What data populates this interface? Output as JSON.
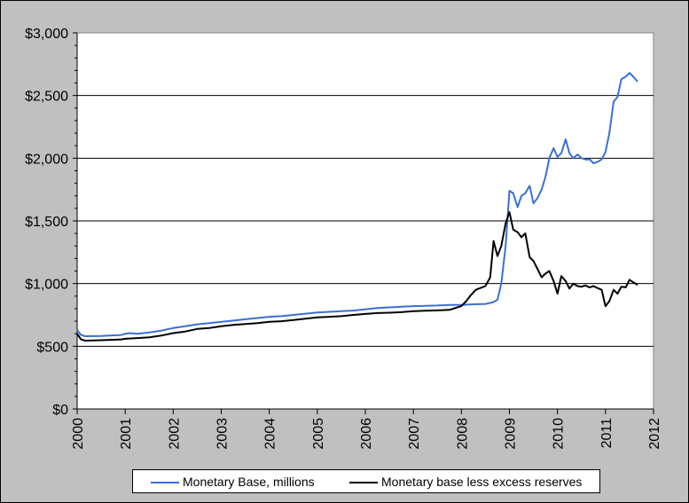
{
  "chart_data": {
    "type": "line",
    "title": "",
    "xlabel": "",
    "ylabel": "",
    "xlim": [
      2000,
      2012
    ],
    "ylim": [
      0,
      3000
    ],
    "x_ticks": [
      "2000",
      "2001",
      "2002",
      "2003",
      "2004",
      "2005",
      "2006",
      "2007",
      "2008",
      "2009",
      "2010",
      "2011",
      "2012"
    ],
    "y_ticks": [
      "$0",
      "$500",
      "$1,000",
      "$1,500",
      "$2,000",
      "$2,500",
      "$3,000"
    ],
    "grid": "horizontal",
    "legend_position": "bottom",
    "series": [
      {
        "name": "Monetary Base, millions",
        "color": "#3a6fd8",
        "points": [
          [
            2000.0,
            630
          ],
          [
            2000.08,
            590
          ],
          [
            2000.17,
            580
          ],
          [
            2000.5,
            582
          ],
          [
            2000.92,
            590
          ],
          [
            2001.0,
            600
          ],
          [
            2001.1,
            605
          ],
          [
            2001.25,
            600
          ],
          [
            2001.5,
            610
          ],
          [
            2001.75,
            625
          ],
          [
            2002.0,
            645
          ],
          [
            2002.25,
            660
          ],
          [
            2002.5,
            675
          ],
          [
            2002.75,
            685
          ],
          [
            2003.0,
            695
          ],
          [
            2003.25,
            705
          ],
          [
            2003.5,
            715
          ],
          [
            2003.75,
            725
          ],
          [
            2004.0,
            735
          ],
          [
            2004.25,
            740
          ],
          [
            2004.5,
            750
          ],
          [
            2004.75,
            760
          ],
          [
            2005.0,
            770
          ],
          [
            2005.25,
            775
          ],
          [
            2005.5,
            780
          ],
          [
            2005.75,
            785
          ],
          [
            2006.0,
            795
          ],
          [
            2006.25,
            805
          ],
          [
            2006.5,
            810
          ],
          [
            2006.75,
            815
          ],
          [
            2007.0,
            820
          ],
          [
            2007.25,
            822
          ],
          [
            2007.5,
            825
          ],
          [
            2007.75,
            830
          ],
          [
            2008.0,
            830
          ],
          [
            2008.25,
            835
          ],
          [
            2008.5,
            838
          ],
          [
            2008.65,
            850
          ],
          [
            2008.75,
            870
          ],
          [
            2008.83,
            1000
          ],
          [
            2008.92,
            1300
          ],
          [
            2009.0,
            1740
          ],
          [
            2009.08,
            1720
          ],
          [
            2009.17,
            1610
          ],
          [
            2009.25,
            1700
          ],
          [
            2009.33,
            1720
          ],
          [
            2009.42,
            1780
          ],
          [
            2009.5,
            1640
          ],
          [
            2009.58,
            1680
          ],
          [
            2009.67,
            1750
          ],
          [
            2009.75,
            1850
          ],
          [
            2009.83,
            2000
          ],
          [
            2009.92,
            2080
          ],
          [
            2010.0,
            2010
          ],
          [
            2010.08,
            2040
          ],
          [
            2010.17,
            2150
          ],
          [
            2010.25,
            2040
          ],
          [
            2010.33,
            2000
          ],
          [
            2010.42,
            2030
          ],
          [
            2010.5,
            2000
          ],
          [
            2010.58,
            1990
          ],
          [
            2010.67,
            1990
          ],
          [
            2010.75,
            1960
          ],
          [
            2010.83,
            1970
          ],
          [
            2010.92,
            1990
          ],
          [
            2011.0,
            2050
          ],
          [
            2011.08,
            2200
          ],
          [
            2011.17,
            2450
          ],
          [
            2011.25,
            2490
          ],
          [
            2011.33,
            2630
          ],
          [
            2011.42,
            2650
          ],
          [
            2011.5,
            2680
          ],
          [
            2011.58,
            2650
          ],
          [
            2011.67,
            2610
          ]
        ]
      },
      {
        "name": "Monetary base less excess reserves",
        "color": "#000000",
        "points": [
          [
            2000.0,
            600
          ],
          [
            2000.08,
            555
          ],
          [
            2000.17,
            545
          ],
          [
            2000.5,
            548
          ],
          [
            2000.92,
            555
          ],
          [
            2001.0,
            560
          ],
          [
            2001.25,
            565
          ],
          [
            2001.5,
            572
          ],
          [
            2001.75,
            585
          ],
          [
            2002.0,
            605
          ],
          [
            2002.25,
            618
          ],
          [
            2002.5,
            638
          ],
          [
            2002.75,
            645
          ],
          [
            2003.0,
            660
          ],
          [
            2003.25,
            670
          ],
          [
            2003.5,
            678
          ],
          [
            2003.75,
            685
          ],
          [
            2004.0,
            695
          ],
          [
            2004.25,
            700
          ],
          [
            2004.5,
            710
          ],
          [
            2004.75,
            720
          ],
          [
            2005.0,
            730
          ],
          [
            2005.25,
            735
          ],
          [
            2005.5,
            740
          ],
          [
            2005.75,
            750
          ],
          [
            2006.0,
            758
          ],
          [
            2006.25,
            765
          ],
          [
            2006.5,
            768
          ],
          [
            2006.75,
            772
          ],
          [
            2007.0,
            780
          ],
          [
            2007.25,
            783
          ],
          [
            2007.5,
            786
          ],
          [
            2007.75,
            790
          ],
          [
            2008.0,
            820
          ],
          [
            2008.1,
            860
          ],
          [
            2008.2,
            910
          ],
          [
            2008.3,
            950
          ],
          [
            2008.4,
            965
          ],
          [
            2008.5,
            980
          ],
          [
            2008.6,
            1050
          ],
          [
            2008.67,
            1340
          ],
          [
            2008.75,
            1220
          ],
          [
            2008.83,
            1300
          ],
          [
            2008.92,
            1480
          ],
          [
            2009.0,
            1570
          ],
          [
            2009.08,
            1430
          ],
          [
            2009.17,
            1410
          ],
          [
            2009.25,
            1370
          ],
          [
            2009.33,
            1400
          ],
          [
            2009.42,
            1210
          ],
          [
            2009.5,
            1180
          ],
          [
            2009.58,
            1120
          ],
          [
            2009.67,
            1050
          ],
          [
            2009.75,
            1080
          ],
          [
            2009.83,
            1100
          ],
          [
            2009.92,
            1020
          ],
          [
            2010.0,
            920
          ],
          [
            2010.08,
            1060
          ],
          [
            2010.17,
            1020
          ],
          [
            2010.25,
            960
          ],
          [
            2010.33,
            1000
          ],
          [
            2010.42,
            980
          ],
          [
            2010.5,
            975
          ],
          [
            2010.58,
            985
          ],
          [
            2010.67,
            970
          ],
          [
            2010.75,
            980
          ],
          [
            2010.83,
            965
          ],
          [
            2010.92,
            950
          ],
          [
            2011.0,
            820
          ],
          [
            2011.08,
            860
          ],
          [
            2011.17,
            950
          ],
          [
            2011.25,
            920
          ],
          [
            2011.33,
            975
          ],
          [
            2011.42,
            970
          ],
          [
            2011.5,
            1030
          ],
          [
            2011.58,
            1010
          ],
          [
            2011.67,
            990
          ]
        ]
      }
    ]
  }
}
